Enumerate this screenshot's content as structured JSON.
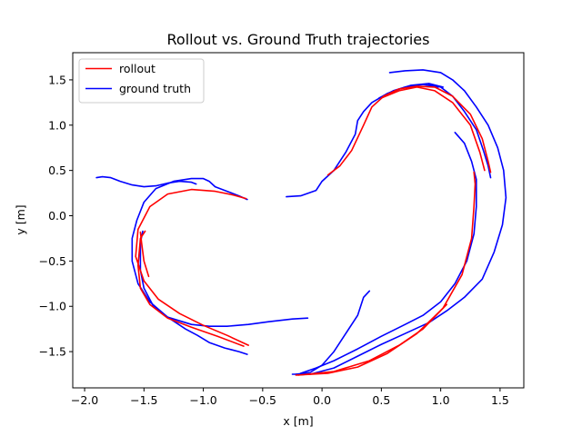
{
  "chart_data": {
    "type": "line",
    "title": "Rollout vs. Ground Truth trajectories",
    "xlabel": "x [m]",
    "ylabel": "y [m]",
    "xlim": [
      -2.1,
      1.7
    ],
    "ylim": [
      -1.9,
      1.8
    ],
    "xticks": [
      -2.0,
      -1.5,
      -1.0,
      -0.5,
      0.0,
      0.5,
      1.0,
      1.5
    ],
    "xtick_labels": [
      "−2.0",
      "−1.5",
      "−1.0",
      "−0.5",
      "0.0",
      "0.5",
      "1.0",
      "1.5"
    ],
    "yticks": [
      -1.5,
      -1.0,
      -0.5,
      0.0,
      0.5,
      1.0,
      1.5
    ],
    "ytick_labels": [
      "−1.5",
      "−1.0",
      "−0.5",
      "0.0",
      "0.5",
      "1.0",
      "1.5"
    ],
    "grid": false,
    "legend_position": "top-left",
    "series": [
      {
        "name": "rollout",
        "color": "#ff0000",
        "segments": [
          [
            [
              -0.62,
              -1.43
            ],
            [
              -0.8,
              -1.32
            ],
            [
              -1.0,
              -1.21
            ],
            [
              -1.2,
              -1.08
            ],
            [
              -1.38,
              -0.92
            ],
            [
              -1.5,
              -0.72
            ],
            [
              -1.57,
              -0.45
            ],
            [
              -1.55,
              -0.15
            ],
            [
              -1.45,
              0.1
            ],
            [
              -1.3,
              0.24
            ],
            [
              -1.1,
              0.29
            ],
            [
              -0.9,
              0.27
            ],
            [
              -0.75,
              0.23
            ],
            [
              -0.64,
              0.19
            ]
          ],
          [
            [
              -0.66,
              -1.44
            ],
            [
              -0.88,
              -1.33
            ],
            [
              -1.1,
              -1.23
            ],
            [
              -1.3,
              -1.13
            ],
            [
              -1.45,
              -0.98
            ],
            [
              -1.53,
              -0.8
            ],
            [
              -1.55,
              -0.55
            ],
            [
              -1.53,
              -0.25
            ],
            [
              -1.49,
              -0.17
            ]
          ],
          [
            [
              -1.46,
              -0.67
            ],
            [
              -1.5,
              -0.5
            ],
            [
              -1.52,
              -0.3
            ],
            [
              -1.53,
              -0.18
            ]
          ],
          [
            [
              -0.22,
              -1.76
            ],
            [
              0.05,
              -1.74
            ],
            [
              0.3,
              -1.67
            ],
            [
              0.55,
              -1.52
            ],
            [
              0.8,
              -1.3
            ],
            [
              1.02,
              -1.02
            ],
            [
              1.18,
              -0.65
            ],
            [
              1.26,
              -0.25
            ],
            [
              1.28,
              0.1
            ],
            [
              1.29,
              0.35
            ],
            [
              1.28,
              0.48
            ]
          ],
          [
            [
              -0.2,
              -1.76
            ],
            [
              0.1,
              -1.72
            ],
            [
              0.4,
              -1.6
            ],
            [
              0.65,
              -1.43
            ],
            [
              0.85,
              -1.25
            ],
            [
              1.05,
              -0.98
            ]
          ],
          [
            [
              0.05,
              0.45
            ],
            [
              0.15,
              0.55
            ],
            [
              0.25,
              0.72
            ],
            [
              0.35,
              1.0
            ],
            [
              0.42,
              1.2
            ],
            [
              0.52,
              1.32
            ],
            [
              0.65,
              1.4
            ],
            [
              0.8,
              1.43
            ],
            [
              0.95,
              1.42
            ],
            [
              1.1,
              1.32
            ],
            [
              1.25,
              1.12
            ],
            [
              1.35,
              0.85
            ],
            [
              1.4,
              0.6
            ],
            [
              1.42,
              0.48
            ]
          ],
          [
            [
              0.5,
              1.3
            ],
            [
              0.65,
              1.38
            ],
            [
              0.8,
              1.42
            ],
            [
              0.95,
              1.38
            ],
            [
              1.1,
              1.25
            ],
            [
              1.25,
              1.0
            ],
            [
              1.33,
              0.7
            ],
            [
              1.37,
              0.5
            ]
          ]
        ]
      },
      {
        "name": "ground truth",
        "color": "#0000ff",
        "segments": [
          [
            [
              -1.9,
              0.42
            ],
            [
              -1.85,
              0.43
            ],
            [
              -1.78,
              0.42
            ],
            [
              -1.7,
              0.38
            ],
            [
              -1.6,
              0.34
            ],
            [
              -1.5,
              0.32
            ],
            [
              -1.4,
              0.33
            ],
            [
              -1.3,
              0.36
            ],
            [
              -1.2,
              0.38
            ],
            [
              -1.1,
              0.37
            ],
            [
              -1.06,
              0.35
            ]
          ],
          [
            [
              -0.63,
              0.18
            ],
            [
              -0.7,
              0.22
            ],
            [
              -0.8,
              0.27
            ],
            [
              -0.9,
              0.32
            ],
            [
              -0.95,
              0.38
            ],
            [
              -1.0,
              0.41
            ],
            [
              -1.1,
              0.41
            ],
            [
              -1.25,
              0.38
            ],
            [
              -1.4,
              0.3
            ],
            [
              -1.5,
              0.15
            ],
            [
              -1.56,
              -0.05
            ],
            [
              -1.6,
              -0.25
            ],
            [
              -1.6,
              -0.5
            ],
            [
              -1.55,
              -0.75
            ],
            [
              -1.45,
              -0.95
            ],
            [
              -1.3,
              -1.12
            ],
            [
              -1.15,
              -1.25
            ],
            [
              -1.05,
              -1.32
            ],
            [
              -0.95,
              -1.4
            ],
            [
              -0.82,
              -1.46
            ],
            [
              -0.7,
              -1.5
            ],
            [
              -0.63,
              -1.53
            ]
          ],
          [
            [
              -0.12,
              -1.13
            ],
            [
              -0.25,
              -1.14
            ],
            [
              -0.45,
              -1.17
            ],
            [
              -0.62,
              -1.2
            ],
            [
              -0.8,
              -1.22
            ],
            [
              -0.95,
              -1.22
            ],
            [
              -1.1,
              -1.2
            ],
            [
              -1.3,
              -1.12
            ],
            [
              -1.42,
              -1.0
            ],
            [
              -1.5,
              -0.8
            ],
            [
              -1.53,
              -0.6
            ],
            [
              -1.53,
              -0.3
            ],
            [
              -1.51,
              -0.17
            ]
          ],
          [
            [
              -0.3,
              0.21
            ],
            [
              -0.18,
              0.22
            ],
            [
              -0.05,
              0.28
            ],
            [
              0.0,
              0.38
            ],
            [
              0.1,
              0.5
            ],
            [
              0.2,
              0.7
            ],
            [
              0.28,
              0.9
            ],
            [
              0.3,
              1.05
            ],
            [
              0.35,
              1.15
            ],
            [
              0.42,
              1.25
            ],
            [
              0.55,
              1.35
            ],
            [
              0.7,
              1.42
            ],
            [
              0.85,
              1.45
            ],
            [
              0.98,
              1.42
            ]
          ],
          [
            [
              0.57,
              1.58
            ],
            [
              0.7,
              1.6
            ],
            [
              0.85,
              1.61
            ],
            [
              1.0,
              1.58
            ],
            [
              1.1,
              1.5
            ],
            [
              1.2,
              1.38
            ],
            [
              1.3,
              1.2
            ],
            [
              1.4,
              1.0
            ],
            [
              1.48,
              0.75
            ],
            [
              1.53,
              0.5
            ],
            [
              1.55,
              0.2
            ],
            [
              1.52,
              -0.1
            ],
            [
              1.45,
              -0.4
            ],
            [
              1.35,
              -0.7
            ],
            [
              1.2,
              -0.9
            ],
            [
              1.05,
              -1.05
            ],
            [
              0.9,
              -1.18
            ],
            [
              0.7,
              -1.3
            ],
            [
              0.5,
              -1.42
            ],
            [
              0.3,
              -1.55
            ],
            [
              0.1,
              -1.68
            ],
            [
              -0.1,
              -1.75
            ],
            [
              -0.25,
              -1.75
            ]
          ],
          [
            [
              0.48,
              1.3
            ],
            [
              0.6,
              1.38
            ],
            [
              0.75,
              1.44
            ],
            [
              0.9,
              1.46
            ],
            [
              1.02,
              1.42
            ]
          ],
          [
            [
              1.12,
              0.92
            ],
            [
              1.2,
              0.8
            ],
            [
              1.26,
              0.6
            ],
            [
              1.3,
              0.4
            ],
            [
              1.3,
              0.1
            ],
            [
              1.28,
              -0.2
            ],
            [
              1.22,
              -0.5
            ],
            [
              1.12,
              -0.75
            ],
            [
              1.0,
              -0.95
            ],
            [
              0.85,
              -1.1
            ],
            [
              0.7,
              -1.2
            ],
            [
              0.5,
              -1.33
            ],
            [
              0.3,
              -1.47
            ],
            [
              0.1,
              -1.6
            ],
            [
              -0.05,
              -1.68
            ],
            [
              -0.18,
              -1.74
            ]
          ],
          [
            [
              0.4,
              -0.83
            ],
            [
              0.35,
              -0.9
            ],
            [
              0.3,
              -1.1
            ],
            [
              0.2,
              -1.3
            ],
            [
              0.1,
              -1.5
            ],
            [
              0.0,
              -1.65
            ],
            [
              -0.1,
              -1.73
            ],
            [
              -0.22,
              -1.75
            ]
          ],
          [
            [
              1.42,
              0.42
            ],
            [
              1.4,
              0.55
            ],
            [
              1.36,
              0.72
            ],
            [
              1.3,
              0.95
            ],
            [
              1.2,
              1.15
            ],
            [
              1.1,
              1.32
            ],
            [
              1.0,
              1.42
            ],
            [
              0.9,
              1.45
            ]
          ]
        ]
      }
    ]
  }
}
